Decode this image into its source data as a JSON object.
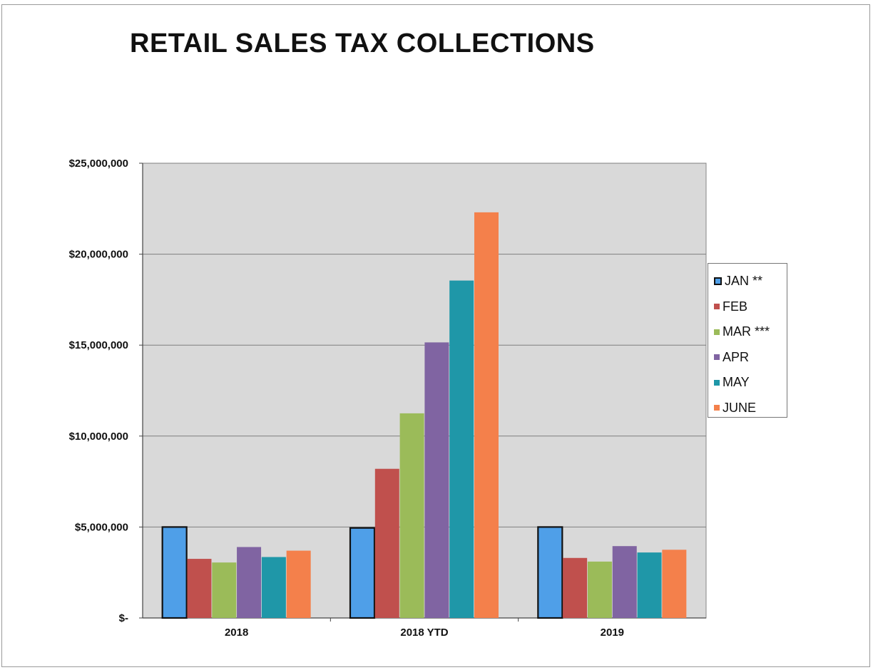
{
  "chart_data": {
    "type": "bar",
    "title": "RETAIL SALES TAX COLLECTIONS",
    "categories": [
      "2018",
      "2018 YTD",
      "2019"
    ],
    "series": [
      {
        "name": "JAN **",
        "color": "#4F9FE8",
        "values": [
          5000000,
          4950000,
          5000000
        ]
      },
      {
        "name": "FEB",
        "color": "#C0504D",
        "values": [
          3250000,
          8200000,
          3300000
        ]
      },
      {
        "name": "MAR ***",
        "color": "#9BBB59",
        "values": [
          3050000,
          11250000,
          3100000
        ]
      },
      {
        "name": "APR",
        "color": "#8064A2",
        "values": [
          3900000,
          15150000,
          3950000
        ]
      },
      {
        "name": "MAY",
        "color": "#1F97A8",
        "values": [
          3350000,
          18550000,
          3600000
        ]
      },
      {
        "name": "JUNE",
        "color": "#F4804B",
        "values": [
          3700000,
          22300000,
          3750000
        ]
      }
    ],
    "ylim": [
      0,
      25000000
    ],
    "yticks": [
      0,
      5000000,
      10000000,
      15000000,
      20000000,
      25000000
    ],
    "ytick_labels": [
      "$-",
      "$5,000,000",
      "$10,000,000",
      "$15,000,000",
      "$20,000,000",
      "$25,000,000"
    ],
    "xlabel": "",
    "ylabel": "",
    "grid": true,
    "legend_position": "right"
  }
}
